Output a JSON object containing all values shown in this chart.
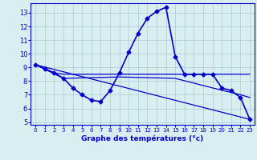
{
  "title": "",
  "xlabel": "Graphe des températures (°c)",
  "background_color": "#d8eef0",
  "line_color": "#0000cc",
  "grid_color": "#aaccd0",
  "xlim": [
    -0.5,
    23.5
  ],
  "ylim": [
    4.8,
    13.7
  ],
  "yticks": [
    5,
    6,
    7,
    8,
    9,
    10,
    11,
    12,
    13
  ],
  "xticks": [
    0,
    1,
    2,
    3,
    4,
    5,
    6,
    7,
    8,
    9,
    10,
    11,
    12,
    13,
    14,
    15,
    16,
    17,
    18,
    19,
    20,
    21,
    22,
    23
  ],
  "series": [
    {
      "x": [
        0,
        1,
        2,
        3,
        4,
        5,
        6,
        7,
        8,
        9,
        10,
        11,
        12,
        13,
        14,
        15,
        16,
        17,
        18,
        19,
        20,
        21,
        22,
        23
      ],
      "y": [
        9.2,
        8.9,
        8.6,
        8.2,
        7.5,
        7.0,
        6.6,
        6.5,
        7.3,
        8.6,
        10.1,
        11.5,
        12.6,
        13.1,
        13.4,
        9.8,
        8.5,
        8.5,
        8.5,
        8.5,
        7.5,
        7.3,
        6.8,
        5.2
      ],
      "marker": "D",
      "markersize": 2.5,
      "linewidth": 1.2
    },
    {
      "x": [
        0,
        1,
        2,
        3,
        9,
        10,
        15,
        16,
        17,
        18,
        19,
        20,
        23
      ],
      "y": [
        9.2,
        8.9,
        8.6,
        8.5,
        8.5,
        8.5,
        8.5,
        8.5,
        8.5,
        8.5,
        8.5,
        8.5,
        8.5
      ],
      "marker": null,
      "markersize": 0,
      "linewidth": 0.9
    },
    {
      "x": [
        0,
        3,
        9,
        15,
        19,
        22,
        23
      ],
      "y": [
        9.2,
        8.2,
        8.3,
        8.2,
        7.5,
        7.0,
        6.8
      ],
      "marker": null,
      "markersize": 0,
      "linewidth": 0.9
    },
    {
      "x": [
        0,
        23
      ],
      "y": [
        9.2,
        5.2
      ],
      "marker": null,
      "markersize": 0,
      "linewidth": 0.9
    }
  ]
}
